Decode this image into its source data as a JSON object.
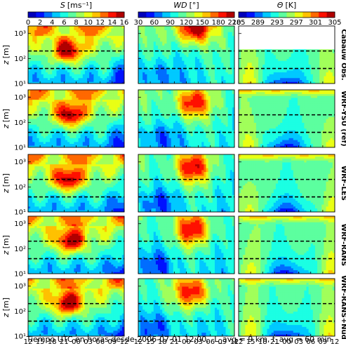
{
  "figure": {
    "xlabel": "Tiempo UTC en horas desde 2006-07-01 12:00,",
    "xlabel_params": "L_avg = 9 km, t_avg = 60 min",
    "ylabel_symbol": "z",
    "ylabel_unit": "[m]"
  },
  "colorbars": [
    {
      "variable": "S",
      "unit": "[ms⁻¹]",
      "ticks": [
        "0",
        "2",
        "4",
        "6",
        "8",
        "10",
        "12",
        "14",
        "16"
      ],
      "range": [
        0,
        16
      ]
    },
    {
      "variable": "WD",
      "unit": "[°]",
      "ticks": [
        "30",
        "60",
        "90",
        "120",
        "150",
        "180",
        "210"
      ],
      "range": [
        30,
        210
      ]
    },
    {
      "variable": "Θ",
      "unit": "[K]",
      "ticks": [
        "285",
        "289",
        "293",
        "297",
        "301",
        "305"
      ],
      "range": [
        285,
        305
      ]
    }
  ],
  "rows": [
    {
      "label": "Cabauw Obs."
    },
    {
      "label": "WRF-YSU (ref)"
    },
    {
      "label": "WRF-LES"
    },
    {
      "label": "WRF-RANS"
    },
    {
      "label": "WRF-RANS+Nud"
    }
  ],
  "chart_data": {
    "type": "heatmap",
    "x_ticks": [
      "12",
      "15",
      "18",
      "21",
      "00",
      "03",
      "06",
      "09",
      "12"
    ],
    "x_range_hours": [
      0,
      24
    ],
    "y_scale": "log",
    "y_ticks": [
      "10¹",
      "10²",
      "10³"
    ],
    "y_range_m": [
      10,
      2000
    ],
    "dashed_reference_heights_m": [
      40,
      200
    ],
    "panels_note": "5 rows (Cabauw Obs., WRF-YSU (ref), WRF-LES, WRF-RANS, WRF-RANS+Nud) × 3 variables (S, WD, Θ)",
    "features": {
      "S": {
        "nocturnal_jet_max": 12,
        "jet_time_hours": 10,
        "jet_height_m": 200,
        "background": 4
      },
      "WD": {
        "background": 90,
        "veer_max": 200,
        "veer_time_hours": 14,
        "veer_height_m": 600
      },
      "THETA": {
        "background": 294,
        "night_surface_min": 287,
        "day_mixed": 297
      }
    }
  }
}
